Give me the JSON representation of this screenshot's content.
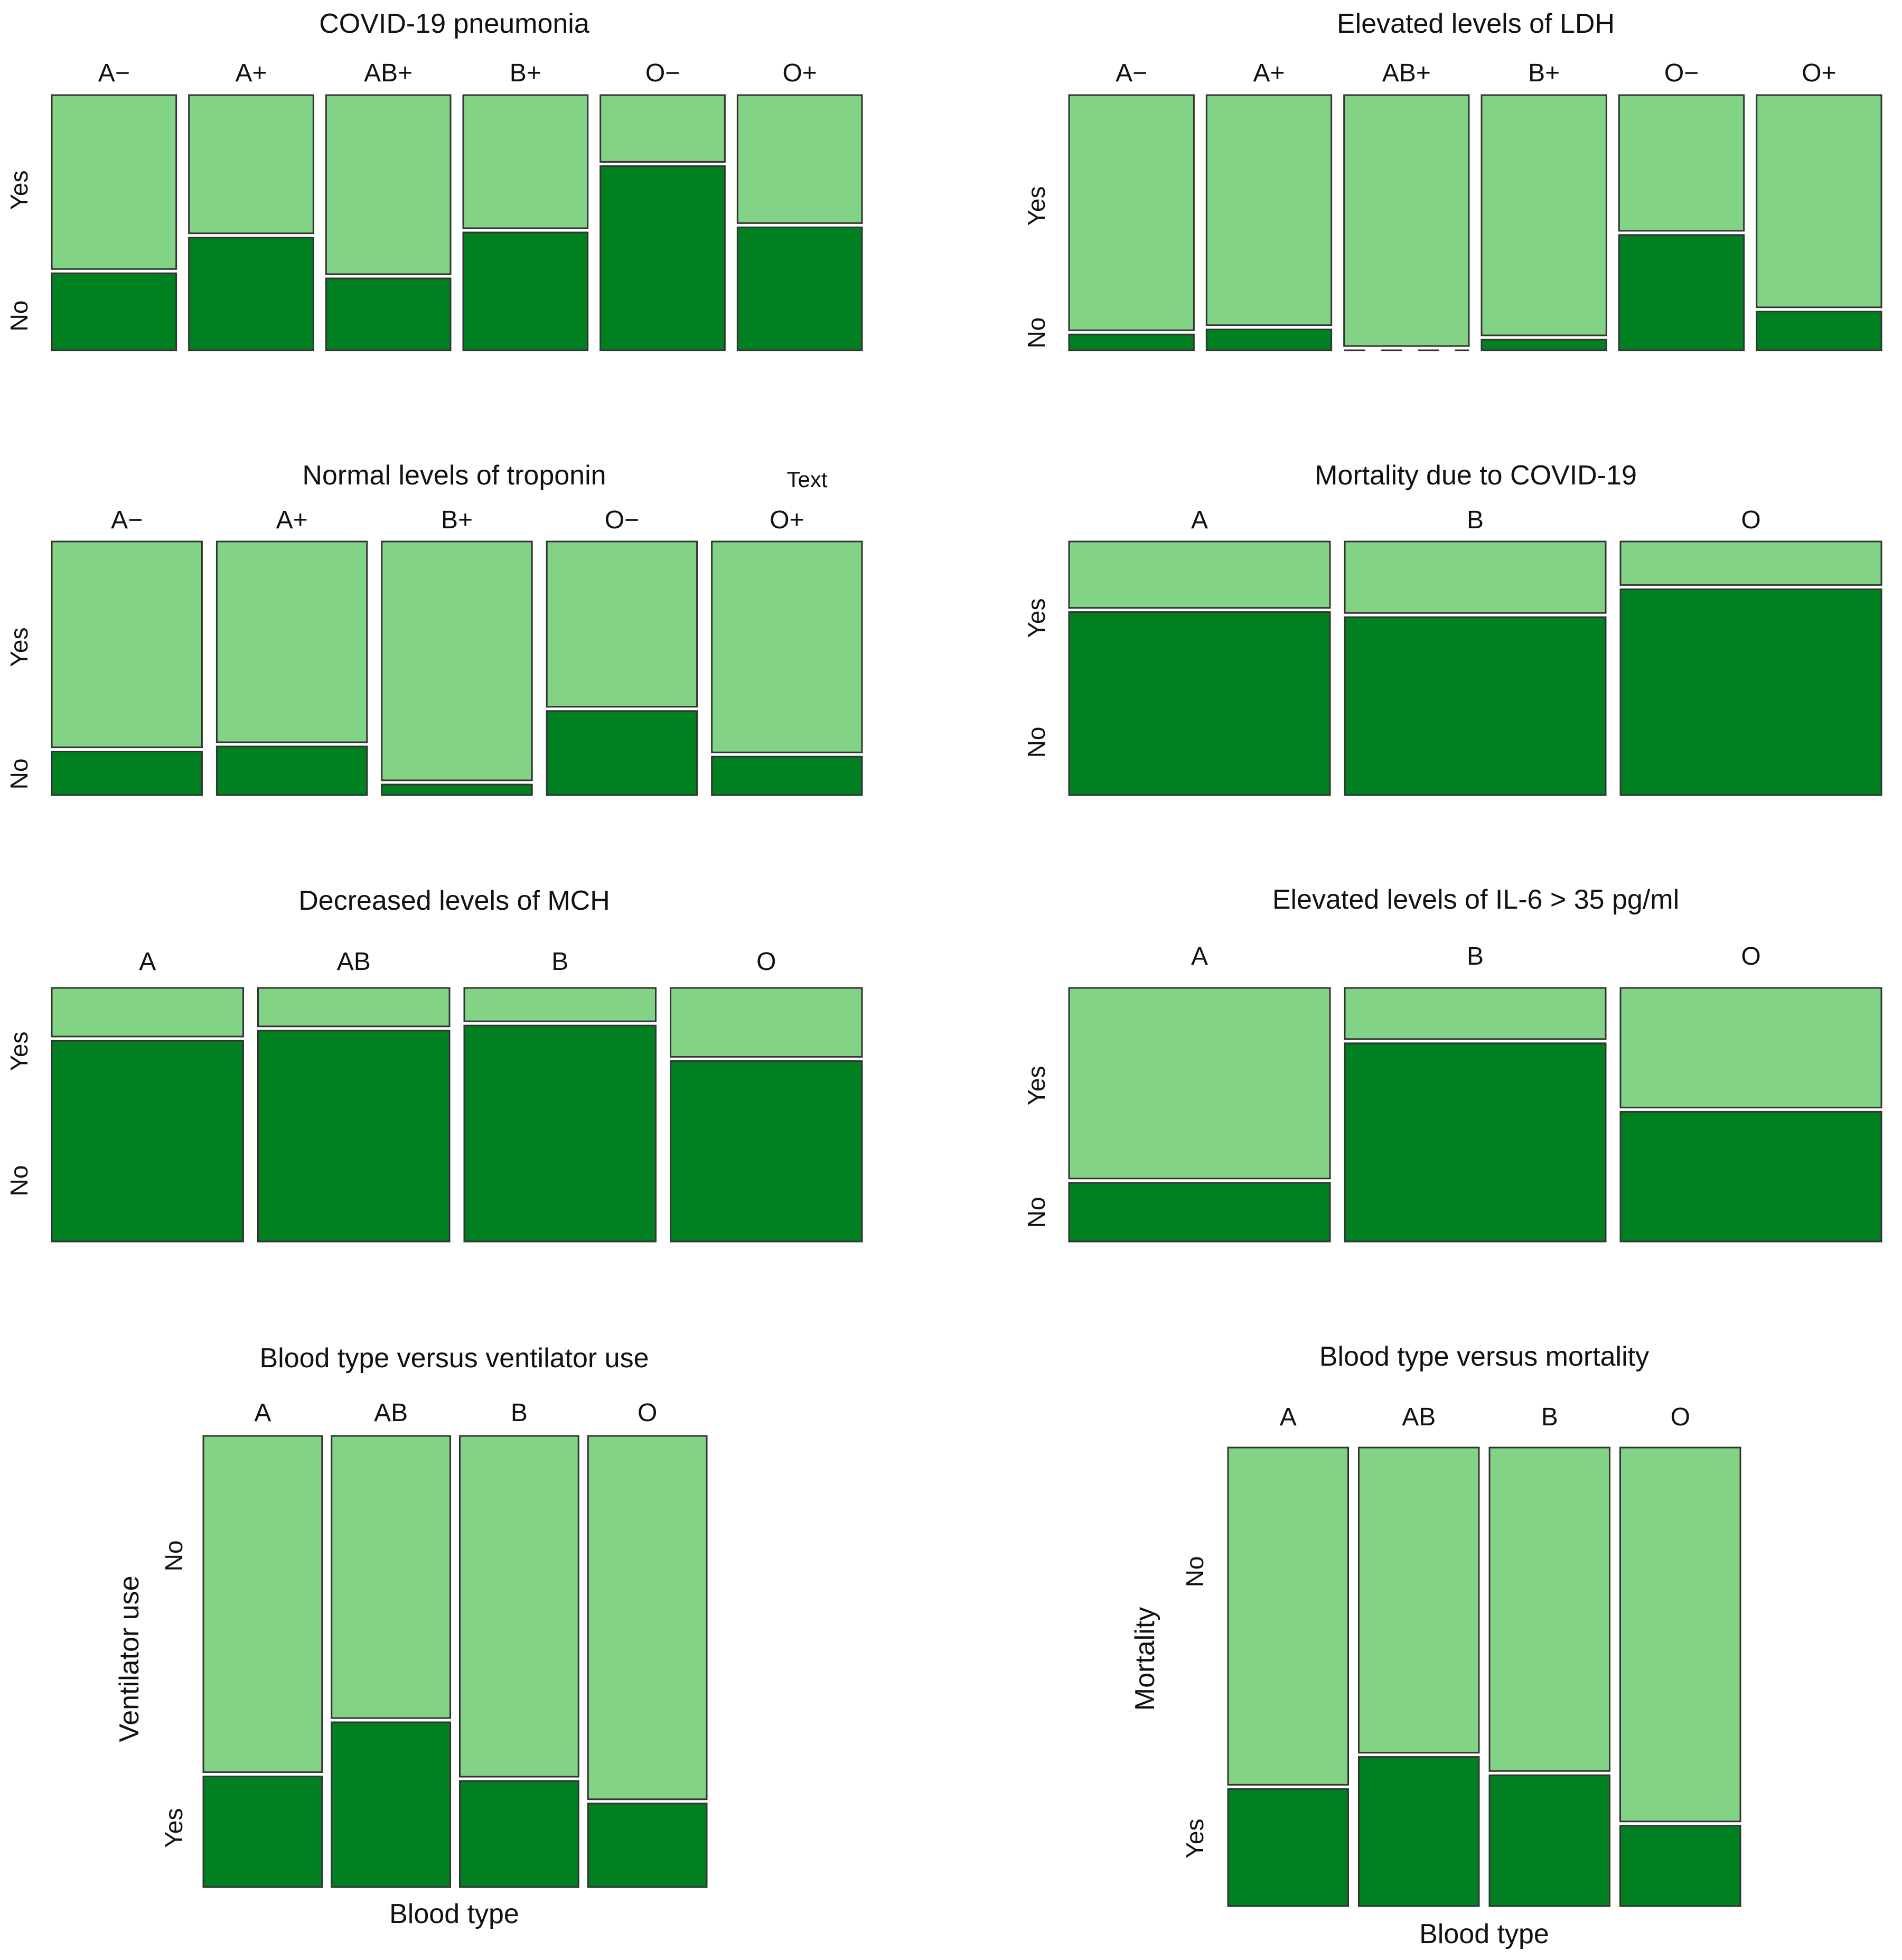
{
  "colors": {
    "top_segment": "#82D386",
    "bottom_segment": "#008020",
    "cell_border": "#333333",
    "background": "#FFFFFF"
  },
  "chart_data": [
    {
      "type": "bar",
      "subtype": "mosaic",
      "title": "COVID-19 pneumonia",
      "categories": [
        "A−",
        "A+",
        "AB+",
        "B+",
        "O−",
        "O+"
      ],
      "row_labels": {
        "top": "Yes",
        "bottom": "No"
      },
      "bottom_share": [
        0.31,
        0.45,
        0.29,
        0.47,
        0.73,
        0.49
      ],
      "xlabel": "",
      "ylabel": "",
      "grid": false
    },
    {
      "type": "bar",
      "subtype": "mosaic",
      "title": "Elevated levels of LDH",
      "categories": [
        "A−",
        "A+",
        "AB+",
        "B+",
        "O−",
        "O+"
      ],
      "row_labels": {
        "top": "Yes",
        "bottom": "No"
      },
      "bottom_share": [
        0.07,
        0.09,
        0.0,
        0.05,
        0.46,
        0.16
      ],
      "xlabel": "",
      "ylabel": "",
      "grid": false
    },
    {
      "type": "bar",
      "subtype": "mosaic",
      "title": "Normal levels of troponin",
      "annotation": "Text",
      "categories": [
        "A−",
        "A+",
        "B+",
        "O−",
        "O+"
      ],
      "row_labels": {
        "top": "Yes",
        "bottom": "No"
      },
      "bottom_share": [
        0.18,
        0.2,
        0.05,
        0.34,
        0.16
      ],
      "xlabel": "",
      "ylabel": "",
      "grid": false
    },
    {
      "type": "bar",
      "subtype": "mosaic",
      "title": "Mortality due to COVID-19",
      "categories": [
        "A",
        "B",
        "O"
      ],
      "row_labels": {
        "top": "Yes",
        "bottom": "No"
      },
      "bottom_share": [
        0.73,
        0.71,
        0.82
      ],
      "xlabel": "",
      "ylabel": "",
      "grid": false
    },
    {
      "type": "bar",
      "subtype": "mosaic",
      "title": "Decreased levels of MCH",
      "categories": [
        "A",
        "AB",
        "B",
        "O"
      ],
      "row_labels": {
        "top": "Yes",
        "bottom": "No"
      },
      "bottom_share": [
        0.8,
        0.84,
        0.86,
        0.72
      ],
      "xlabel": "",
      "ylabel": "",
      "grid": false
    },
    {
      "type": "bar",
      "subtype": "mosaic",
      "title": "Elevated levels of IL-6 > 35 pg/ml",
      "categories": [
        "A",
        "B",
        "O"
      ],
      "row_labels": {
        "top": "Yes",
        "bottom": "No"
      },
      "bottom_share": [
        0.24,
        0.79,
        0.52
      ],
      "xlabel": "",
      "ylabel": "",
      "grid": false
    },
    {
      "type": "bar",
      "subtype": "mosaic",
      "title": "Blood type versus ventilator use",
      "categories": [
        "A",
        "AB",
        "B",
        "O"
      ],
      "row_labels": {
        "top": "No",
        "bottom": "Yes"
      },
      "bottom_share": [
        0.25,
        0.37,
        0.24,
        0.19
      ],
      "xlabel": "Blood type",
      "ylabel": "Ventilator use",
      "grid": false
    },
    {
      "type": "bar",
      "subtype": "mosaic",
      "title": "Blood type versus mortality",
      "categories": [
        "A",
        "AB",
        "B",
        "O"
      ],
      "row_labels": {
        "top": "No",
        "bottom": "Yes"
      },
      "bottom_share": [
        0.26,
        0.33,
        0.29,
        0.18
      ],
      "xlabel": "Blood type",
      "ylabel": "Mortality",
      "grid": false
    }
  ]
}
